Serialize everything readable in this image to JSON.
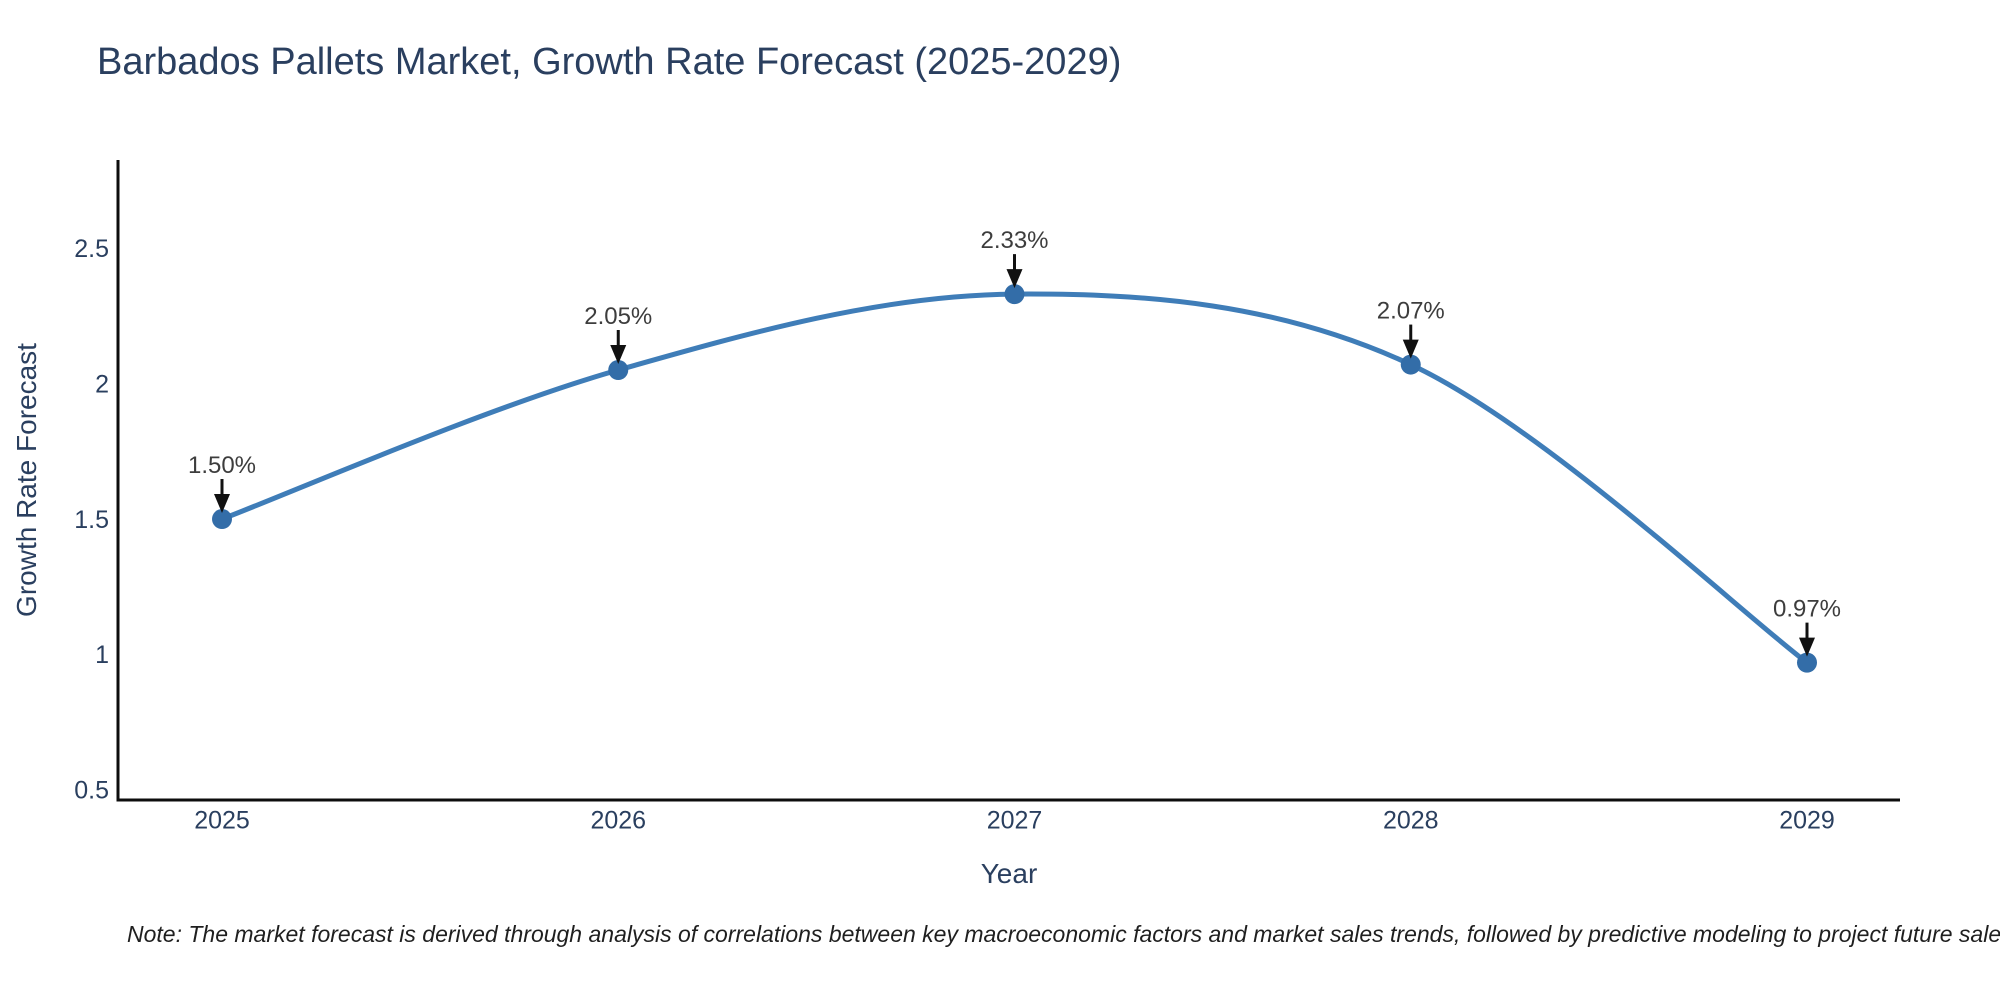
{
  "page": {
    "title": "Barbados Pallets Market, Growth Rate Forecast (2025-2029)",
    "note": "Note: The market forecast is derived through analysis of correlations between key macroeconomic factors and market sales trends, followed by predictive modeling to project future sales"
  },
  "chart_data": {
    "type": "line",
    "title": "Barbados Pallets Market, Growth Rate Forecast (2025-2029)",
    "categories": [
      "2025",
      "2026",
      "2027",
      "2028",
      "2029"
    ],
    "series": [
      {
        "name": "Growth Rate Forecast",
        "values": [
          1.5,
          2.05,
          2.33,
          2.07,
          0.97
        ],
        "point_labels": [
          "1.50%",
          "2.05%",
          "2.33%",
          "2.07%",
          "0.97%"
        ]
      }
    ],
    "xlabel": "Year",
    "ylabel": "Growth Rate Forecast",
    "yticks": [
      0.5,
      1,
      1.5,
      2,
      2.5
    ],
    "ytick_labels": [
      "0.5",
      "1",
      "1.5",
      "2",
      "2.5"
    ],
    "ylim": [
      0.463,
      2.825
    ],
    "grid": false,
    "legend_position": "none",
    "line_shape": "spline",
    "marker": "circle",
    "annotations_arrow": true,
    "colors": {
      "line": "#3f7db8",
      "marker": "#336da8",
      "axis_line": "#0d0d0d",
      "axis_text": "#2a3f5f",
      "annotation_text": "#3d3d3d",
      "arrow": "#111111"
    }
  }
}
